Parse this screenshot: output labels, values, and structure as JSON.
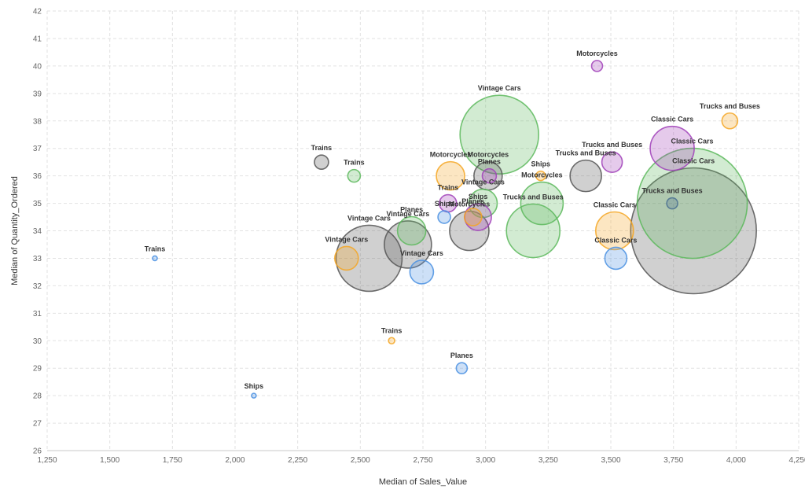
{
  "chart_data": {
    "type": "scatter",
    "title": "",
    "xlabel": "Median of Sales_Value",
    "ylabel": "Median of Quantity_Ordered",
    "xlim": [
      1250,
      4250
    ],
    "ylim": [
      26,
      42
    ],
    "x_ticks": [
      "1,250",
      "1,500",
      "1,750",
      "2,000",
      "2,250",
      "2,500",
      "2,750",
      "3,000",
      "3,250",
      "3,500",
      "3,750",
      "4,000",
      "4,250"
    ],
    "y_ticks": [
      "26",
      "27",
      "28",
      "29",
      "30",
      "31",
      "32",
      "33",
      "34",
      "35",
      "36",
      "37",
      "38",
      "39",
      "40",
      "41",
      "42"
    ],
    "grid": true,
    "point_size": "bubble",
    "colors": {
      "orange": "#f5a623",
      "green": "#5cb85c",
      "gray": "#555555",
      "purple": "#a040b8",
      "blue": "#4a90e2",
      "teal": "#4a7090"
    },
    "points": [
      {
        "label": "Motorcycles",
        "x": 3445,
        "y": 40.0,
        "size": 7,
        "color": "purple"
      },
      {
        "label": "Vintage Cars",
        "x": 3055,
        "y": 37.5,
        "size": 50,
        "color": "green"
      },
      {
        "label": "Trucks and Buses",
        "x": 3975,
        "y": 38.0,
        "size": 10,
        "color": "orange"
      },
      {
        "label": "Classic Cars",
        "x": 3745,
        "y": 37.0,
        "size": 28,
        "color": "purple"
      },
      {
        "label": "Trucks and Buses",
        "x": 3505,
        "y": 36.5,
        "size": 13,
        "color": "purple"
      },
      {
        "label": "Trucks and Buses",
        "x": 3400,
        "y": 36.0,
        "size": 20,
        "color": "gray"
      },
      {
        "label": "Classic Cars",
        "x": 3825,
        "y": 35.0,
        "size": 70,
        "color": "green"
      },
      {
        "label": "Classic Cars",
        "x": 3830,
        "y": 34.0,
        "size": 80,
        "color": "gray"
      },
      {
        "label": "Trucks and Buses",
        "x": 3745,
        "y": 35.0,
        "size": 7,
        "color": "teal"
      },
      {
        "label": "Classic Cars",
        "x": 3515,
        "y": 34.0,
        "size": 24,
        "color": "orange"
      },
      {
        "label": "Classic Cars",
        "x": 3520,
        "y": 33.0,
        "size": 14,
        "color": "blue"
      },
      {
        "label": "Motorcycles",
        "x": 3225,
        "y": 35.0,
        "size": 27,
        "color": "green"
      },
      {
        "label": "Ships",
        "x": 3220,
        "y": 36.0,
        "size": 6,
        "color": "orange"
      },
      {
        "label": "Trucks and Buses",
        "x": 3190,
        "y": 34.0,
        "size": 34,
        "color": "green"
      },
      {
        "label": "Motorcycles",
        "x": 3010,
        "y": 36.0,
        "size": 18,
        "color": "gray"
      },
      {
        "label": "Planes",
        "x": 3015,
        "y": 36.0,
        "size": 9,
        "color": "purple"
      },
      {
        "label": "Motorcycles",
        "x": 2860,
        "y": 36.0,
        "size": 18,
        "color": "orange"
      },
      {
        "label": "Vintage Cars",
        "x": 2990,
        "y": 35.0,
        "size": 18,
        "color": "green"
      },
      {
        "label": "Ships",
        "x": 2970,
        "y": 34.5,
        "size": 17,
        "color": "purple"
      },
      {
        "label": "Planes",
        "x": 2950,
        "y": 34.5,
        "size": 11,
        "color": "orange"
      },
      {
        "label": "Trains",
        "x": 2850,
        "y": 35.0,
        "size": 11,
        "color": "purple"
      },
      {
        "label": "Ships",
        "x": 2835,
        "y": 34.5,
        "size": 8,
        "color": "blue"
      },
      {
        "label": "Motorcycles",
        "x": 2935,
        "y": 34.0,
        "size": 25,
        "color": "gray"
      },
      {
        "label": "Planes",
        "x": 2705,
        "y": 34.0,
        "size": 18,
        "color": "green"
      },
      {
        "label": "Vintage Cars",
        "x": 2690,
        "y": 33.5,
        "size": 30,
        "color": "gray"
      },
      {
        "label": "Vintage Cars",
        "x": 2535,
        "y": 33.0,
        "size": 42,
        "color": "gray"
      },
      {
        "label": "Vintage Cars",
        "x": 2445,
        "y": 33.0,
        "size": 15,
        "color": "orange"
      },
      {
        "label": "Vintage Cars",
        "x": 2745,
        "y": 32.5,
        "size": 15,
        "color": "blue"
      },
      {
        "label": "Trains",
        "x": 2345,
        "y": 36.5,
        "size": 9,
        "color": "gray"
      },
      {
        "label": "Trains",
        "x": 2475,
        "y": 36.0,
        "size": 8,
        "color": "green"
      },
      {
        "label": "Trains",
        "x": 1680,
        "y": 33.0,
        "size": 3,
        "color": "blue"
      },
      {
        "label": "Trains",
        "x": 2625,
        "y": 30.0,
        "size": 4,
        "color": "orange"
      },
      {
        "label": "Planes",
        "x": 2905,
        "y": 29.0,
        "size": 7,
        "color": "blue"
      },
      {
        "label": "Ships",
        "x": 2075,
        "y": 28.0,
        "size": 3,
        "color": "blue"
      }
    ]
  }
}
